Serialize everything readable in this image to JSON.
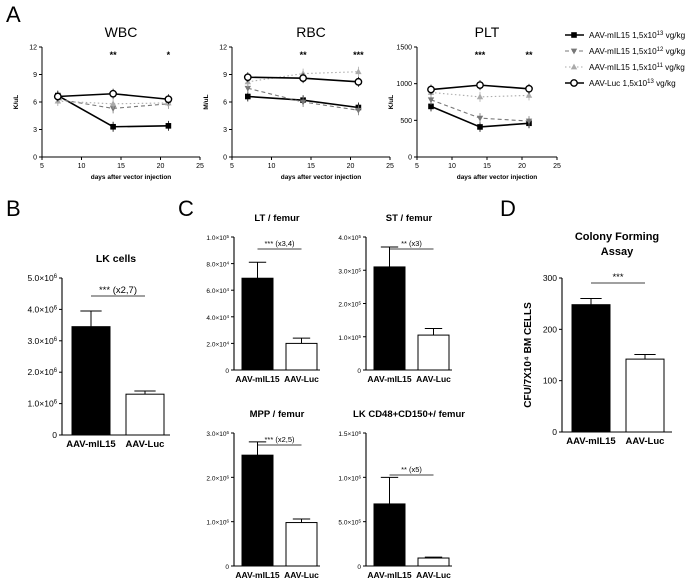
{
  "panel_letters": [
    "A",
    "B",
    "C",
    "D"
  ],
  "legend": [
    {
      "label": "AAV-mIL15 1,5x10",
      "exp": "13",
      "unit": " vg/kg",
      "style": "solid-square"
    },
    {
      "label": "AAV-mIL15 1,5x10",
      "exp": "12",
      "unit": " vg/kg",
      "style": "dash-tri-down"
    },
    {
      "label": "AAV-mIL15 1,5x10",
      "exp": "11",
      "unit": " vg/kg",
      "style": "dot-tri-up"
    },
    {
      "label": "AAV-Luc 1,5x10",
      "exp": "13",
      "unit": " vg/kg",
      "style": "solid-circle"
    }
  ],
  "chart_data": [
    {
      "id": "wbc",
      "panel": "A",
      "type": "line",
      "title": "WBC",
      "xlabel": "days after vector injection",
      "ylabel": "K/uL",
      "xlim": [
        5,
        25
      ],
      "ylim": [
        0,
        12
      ],
      "xticks": [
        5,
        10,
        15,
        20,
        25
      ],
      "yticks": [
        0,
        3,
        6,
        9,
        12
      ],
      "x": [
        7,
        14,
        21
      ],
      "series": [
        {
          "name": "AAV-mIL15 1,5x10^13 vg/kg",
          "values": [
            6.7,
            3.3,
            3.4
          ]
        },
        {
          "name": "AAV-mIL15 1,5x10^12 vg/kg",
          "values": [
            6.3,
            5.3,
            5.8
          ]
        },
        {
          "name": "AAV-mIL15 1,5x10^11 vg/kg",
          "values": [
            6.1,
            5.8,
            5.9
          ]
        },
        {
          "name": "AAV-Luc 1,5x10^13 vg/kg",
          "values": [
            6.6,
            6.9,
            6.3
          ]
        }
      ],
      "annotations": [
        {
          "x": 14,
          "text": "**"
        },
        {
          "x": 21,
          "text": "*"
        }
      ]
    },
    {
      "id": "rbc",
      "panel": "A",
      "type": "line",
      "title": "RBC",
      "xlabel": "days after vector injection",
      "ylabel": "M/uL",
      "xlim": [
        5,
        25
      ],
      "ylim": [
        0,
        12
      ],
      "xticks": [
        5,
        10,
        15,
        20,
        25
      ],
      "yticks": [
        0,
        3,
        6,
        9,
        12
      ],
      "x": [
        7,
        14,
        21
      ],
      "series": [
        {
          "name": "AAV-mIL15 1,5x10^13 vg/kg",
          "values": [
            6.6,
            6.2,
            5.4
          ]
        },
        {
          "name": "AAV-mIL15 1,5x10^12 vg/kg",
          "values": [
            7.5,
            6.0,
            5.1
          ]
        },
        {
          "name": "AAV-mIL15 1,5x10^11 vg/kg",
          "values": [
            8.2,
            9.1,
            9.3
          ]
        },
        {
          "name": "AAV-Luc 1,5x10^13 vg/kg",
          "values": [
            8.7,
            8.6,
            8.2
          ]
        }
      ],
      "annotations": [
        {
          "x": 14,
          "text": "**"
        },
        {
          "x": 21,
          "text": "***"
        }
      ]
    },
    {
      "id": "plt",
      "panel": "A",
      "type": "line",
      "title": "PLT",
      "xlabel": "days after vector injection",
      "ylabel": "K/uL",
      "xlim": [
        5,
        25
      ],
      "ylim": [
        0,
        1500
      ],
      "xticks": [
        5,
        10,
        15,
        20,
        25
      ],
      "yticks": [
        0,
        500,
        1000,
        1500
      ],
      "x": [
        7,
        14,
        21
      ],
      "series": [
        {
          "name": "AAV-mIL15 1,5x10^13 vg/kg",
          "values": [
            690,
            410,
            460
          ]
        },
        {
          "name": "AAV-mIL15 1,5x10^12 vg/kg",
          "values": [
            780,
            530,
            490
          ]
        },
        {
          "name": "AAV-mIL15 1,5x10^11 vg/kg",
          "values": [
            880,
            820,
            840
          ]
        },
        {
          "name": "AAV-Luc 1,5x10^13 vg/kg",
          "values": [
            920,
            980,
            930
          ]
        }
      ],
      "annotations": [
        {
          "x": 14,
          "text": "***"
        },
        {
          "x": 21,
          "text": "**"
        }
      ]
    },
    {
      "id": "lk",
      "panel": "B",
      "type": "bar",
      "title": "LK cells",
      "categories": [
        "AAV-mIL15",
        "AAV-Luc"
      ],
      "values": [
        3.45,
        1.3
      ],
      "errors": [
        0.5,
        0.1
      ],
      "ylim": [
        0,
        5
      ],
      "yticks": [
        0,
        1,
        2,
        3,
        4,
        5
      ],
      "ytick_labels": [
        "0",
        "1.0×10",
        "2.0×10",
        "3.0×10",
        "4.0×10",
        "5.0×10"
      ],
      "ytick_exp": "6",
      "significance": "*** (x2,7)"
    },
    {
      "id": "lt",
      "panel": "C",
      "type": "bar",
      "title": "LT / femur",
      "categories": [
        "AAV-mIL15",
        "AAV-Luc"
      ],
      "values": [
        6.9,
        2.0
      ],
      "errors": [
        1.2,
        0.4
      ],
      "ylim": [
        0,
        10
      ],
      "yticks": [
        0,
        2,
        4,
        6,
        8,
        10
      ],
      "ytick_labels": [
        "0",
        "2.0×10",
        "4.0×10",
        "6.0×10",
        "8.0×10",
        "1.0×10"
      ],
      "ytick_exps": [
        "",
        "4",
        "4",
        "4",
        "4",
        "5"
      ],
      "significance": "*** (x3,4)"
    },
    {
      "id": "st",
      "panel": "C",
      "type": "bar",
      "title": "ST / femur",
      "categories": [
        "AAV-mIL15",
        "AAV-Luc"
      ],
      "values": [
        3.1,
        1.05
      ],
      "errors": [
        0.6,
        0.2
      ],
      "ylim": [
        0,
        4
      ],
      "yticks": [
        0,
        1,
        2,
        3,
        4
      ],
      "ytick_labels": [
        "0",
        "1.0×10",
        "2.0×10",
        "3.0×10",
        "4.0×10"
      ],
      "ytick_exp": "5",
      "significance": "** (x3)"
    },
    {
      "id": "mpp",
      "panel": "C",
      "type": "bar",
      "title": "MPP / femur",
      "categories": [
        "AAV-mIL15",
        "AAV-Luc"
      ],
      "values": [
        2.5,
        0.98
      ],
      "errors": [
        0.3,
        0.08
      ],
      "ylim": [
        0,
        3
      ],
      "yticks": [
        0,
        1,
        2,
        3
      ],
      "ytick_labels": [
        "0",
        "1.0×10",
        "2.0×10",
        "3.0×10"
      ],
      "ytick_exp": "6",
      "significance": "*** (x2,5)"
    },
    {
      "id": "lkcd",
      "panel": "C",
      "type": "bar",
      "title": "LK CD48+CD150+/ femur",
      "categories": [
        "AAV-mIL15",
        "AAV-Luc"
      ],
      "values": [
        0.7,
        0.09
      ],
      "errors": [
        0.3,
        0.01
      ],
      "ylim": [
        0,
        1.5
      ],
      "yticks": [
        0,
        0.5,
        1,
        1.5
      ],
      "ytick_labels": [
        "0",
        "5.0×10",
        "1.0×10",
        "1.5×10"
      ],
      "ytick_exps": [
        "",
        "5",
        "6",
        "6"
      ],
      "significance": "** (x5)"
    },
    {
      "id": "cfa",
      "panel": "D",
      "type": "bar",
      "title": "Colony Forming Assay",
      "ylabel": "CFU/7X10⁴ BM CELLS",
      "categories": [
        "AAV-mIL15",
        "AAV-Luc"
      ],
      "values": [
        248,
        142
      ],
      "errors": [
        12,
        9
      ],
      "ylim": [
        0,
        300
      ],
      "yticks": [
        0,
        100,
        200,
        300
      ],
      "ytick_labels": [
        "0",
        "100",
        "200",
        "300"
      ],
      "significance": "***"
    }
  ]
}
